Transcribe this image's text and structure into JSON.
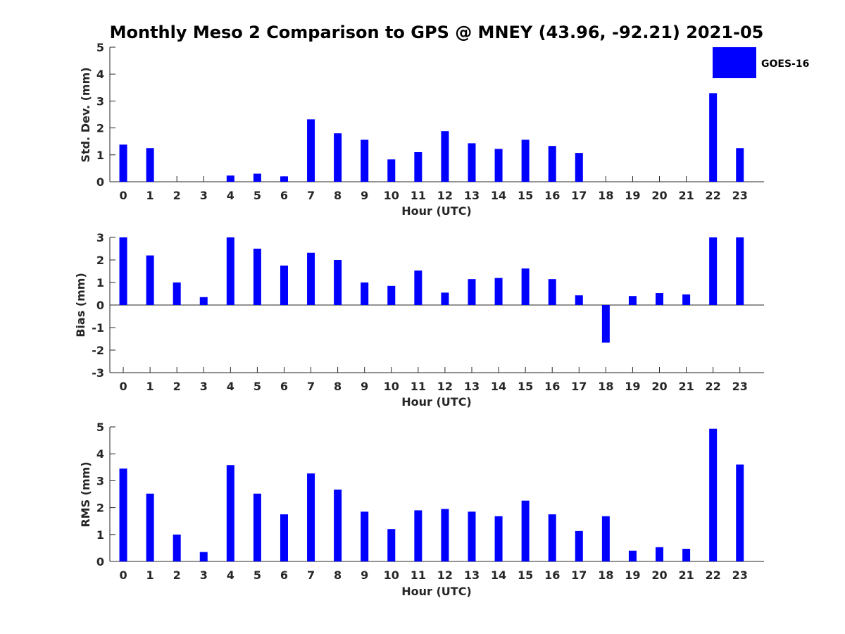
{
  "colors": {
    "bar": "#0000ff",
    "axis": "#262626"
  },
  "chart_data": {
    "type": "bar",
    "title": "Monthly Meso 2 Comparison to GPS @ MNEY (43.96, -92.21) 2021-05",
    "legend": {
      "label": "GOES-16",
      "placement": "top-right"
    },
    "categories": [
      "0",
      "1",
      "2",
      "3",
      "4",
      "5",
      "6",
      "7",
      "8",
      "9",
      "10",
      "11",
      "12",
      "13",
      "14",
      "15",
      "16",
      "17",
      "18",
      "19",
      "20",
      "21",
      "22",
      "23"
    ],
    "panels": [
      {
        "ylabel": "Std. Dev. (mm)",
        "xlabel": "Hour (UTC)",
        "ylim": [
          0,
          5
        ],
        "yticks": [
          "0",
          "1",
          "2",
          "3",
          "4",
          "5"
        ],
        "values": [
          1.38,
          1.25,
          0,
          0,
          0.23,
          0.3,
          0.2,
          2.32,
          1.8,
          1.56,
          0.83,
          1.1,
          1.88,
          1.43,
          1.22,
          1.56,
          1.33,
          1.07,
          0,
          0,
          0,
          0,
          3.29,
          1.25
        ]
      },
      {
        "ylabel": "Bias (mm)",
        "xlabel": "Hour (UTC)",
        "ylim": [
          -3,
          3
        ],
        "yticks": [
          "-3",
          "-2",
          "-1",
          "0",
          "1",
          "2",
          "3"
        ],
        "values": [
          3.0,
          2.2,
          1.0,
          0.35,
          3.0,
          2.5,
          1.75,
          2.32,
          2.0,
          1.0,
          0.85,
          1.53,
          0.55,
          1.15,
          1.2,
          1.62,
          1.15,
          0.43,
          -1.67,
          0.4,
          0.53,
          0.47,
          3.0,
          3.0
        ]
      },
      {
        "ylabel": "RMS (mm)",
        "xlabel": "Hour (UTC)",
        "ylim": [
          0,
          5
        ],
        "yticks": [
          "0",
          "1",
          "2",
          "3",
          "4",
          "5"
        ],
        "values": [
          3.45,
          2.52,
          1.0,
          0.35,
          3.58,
          2.52,
          1.75,
          3.27,
          2.67,
          1.85,
          1.2,
          1.9,
          1.95,
          1.85,
          1.68,
          2.26,
          1.75,
          1.13,
          1.68,
          0.4,
          0.53,
          0.47,
          4.93,
          3.6
        ]
      }
    ]
  }
}
